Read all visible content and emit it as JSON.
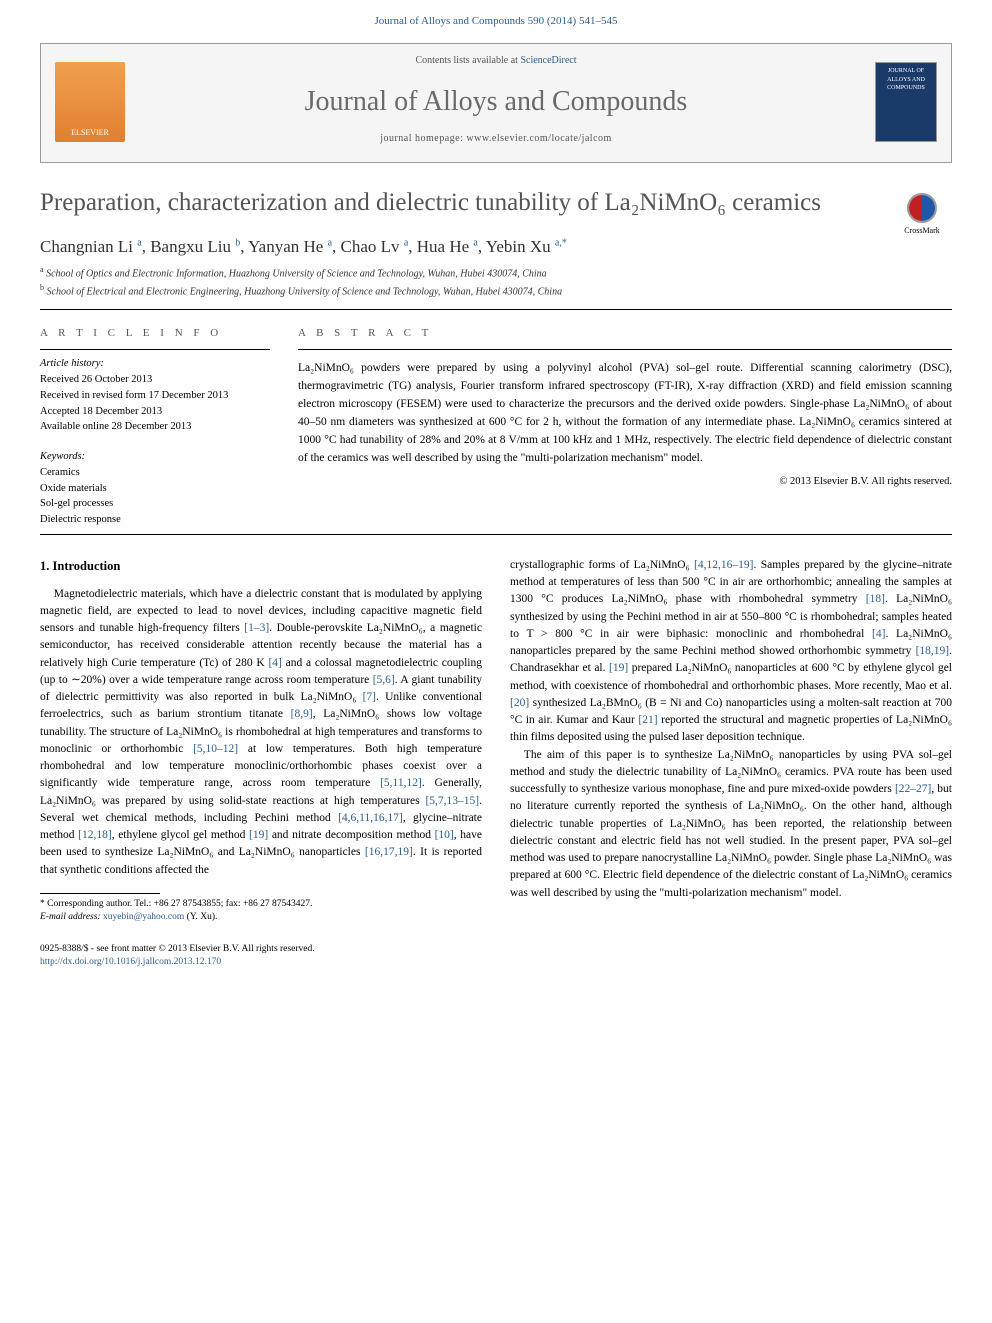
{
  "journalRef": "Journal of Alloys and Compounds 590 (2014) 541–545",
  "headerBox": {
    "contentsPrefix": "Contents lists available at ",
    "contentsLink": "ScienceDirect",
    "journalTitle": "Journal of Alloys and Compounds",
    "homepagePrefix": "journal homepage: ",
    "homepage": "www.elsevier.com/locate/jalcom",
    "elsevierLabel": "ELSEVIER",
    "coverText": "JOURNAL OF ALLOYS AND COMPOUNDS"
  },
  "crossmarkLabel": "CrossMark",
  "title": "Preparation, characterization and dielectric tunability of La₂NiMnO₆ ceramics",
  "authorsHtml": "Changnian Li <sup>a</sup>, Bangxu Liu <sup>b</sup>, Yanyan He <sup>a</sup>, Chao Lv <sup>a</sup>, Hua He <sup>a</sup>, Yebin Xu <sup>a,*</sup>",
  "affiliations": [
    {
      "sup": "a",
      "text": "School of Optics and Electronic Information, Huazhong University of Science and Technology, Wuhan, Hubei 430074, China"
    },
    {
      "sup": "b",
      "text": "School of Electrical and Electronic Engineering, Huazhong University of Science and Technology, Wuhan, Hubei 430074, China"
    }
  ],
  "infoLabel": "A R T I C L E   I N F O",
  "abstractLabel": "A B S T R A C T",
  "history": {
    "hdr": "Article history:",
    "lines": [
      "Received 26 October 2013",
      "Received in revised form 17 December 2013",
      "Accepted 18 December 2013",
      "Available online 28 December 2013"
    ]
  },
  "keywords": {
    "hdr": "Keywords:",
    "lines": [
      "Ceramics",
      "Oxide materials",
      "Sol-gel processes",
      "Dielectric response"
    ]
  },
  "abstract": "La₂NiMnO₆ powders were prepared by using a polyvinyl alcohol (PVA) sol–gel route. Differential scanning calorimetry (DSC), thermogravimetric (TG) analysis, Fourier transform infrared spectroscopy (FT-IR), X-ray diffraction (XRD) and field emission scanning electron microscopy (FESEM) were used to characterize the precursors and the derived oxide powders. Single-phase La₂NiMnO₆ of about 40–50 nm diameters was synthesized at 600 °C for 2 h, without the formation of any intermediate phase. La₂NiMnO₆ ceramics sintered at 1000 °C had tunability of 28% and 20% at 8 V/mm at 100 kHz and 1 MHz, respectively. The electric field dependence of dielectric constant of the ceramics was well described by using the \"multi-polarization mechanism\" model.",
  "copyright": "© 2013 Elsevier B.V. All rights reserved.",
  "sectionHeading": "1. Introduction",
  "bodyPara1": "Magnetodielectric materials, which have a dielectric constant that is modulated by applying magnetic field, are expected to lead to novel devices, including capacitive magnetic field sensors and tunable high-frequency filters [1–3]. Double-perovskite La₂NiMnO₆, a magnetic semiconductor, has received considerable attention recently because the material has a relatively high Curie temperature (Tc) of 280 K [4] and a colossal magnetodielectric coupling (up to ∼20%) over a wide temperature range across room temperature [5,6]. A giant tunability of dielectric permittivity was also reported in bulk La₂NiMnO₆ [7]. Unlike conventional ferroelectrics, such as barium strontium titanate [8,9], La₂NiMnO₆ shows low voltage tunability. The structure of La₂NiMnO₆ is rhombohedral at high temperatures and transforms to monoclinic or orthorhombic [5,10–12] at low temperatures. Both high temperature rhombohedral and low temperature monoclinic/orthorhombic phases coexist over a significantly wide temperature range, across room temperature [5,11,12]. Generally, La₂NiMnO₆ was prepared by using solid-state reactions at high temperatures [5,7,13–15]. Several wet chemical methods, including Pechini method [4,6,11,16,17], glycine–nitrate method [12,18], ethylene glycol gel method [19] and nitrate decomposition method [10], have been used to synthesize La₂NiMnO₆ and La₂NiMnO₆ nanoparticles [16,17,19]. It is reported that synthetic conditions affected the",
  "bodyPara2": "crystallographic forms of La₂NiMnO₆ [4,12,16–19]. Samples prepared by the glycine–nitrate method at temperatures of less than 500 °C in air are orthorhombic; annealing the samples at 1300 °C produces La₂NiMnO₆ phase with rhombohedral symmetry [18]. La₂NiMnO₆ synthesized by using the Pechini method in air at 550–800 °C is rhombohedral; samples heated to T > 800 °C in air were biphasic: monoclinic and rhombohedral [4]. La₂NiMnO₆ nanoparticles prepared by the same Pechini method showed orthorhombic symmetry [18,19]. Chandrasekhar et al. [19] prepared La₂NiMnO₆ nanoparticles at 600 °C by ethylene glycol gel method, with coexistence of rhombohedral and orthorhombic phases. More recently, Mao et al. [20] synthesized La₂BMnO₆ (B = Ni and Co) nanoparticles using a molten-salt reaction at 700 °C in air. Kumar and Kaur [21] reported the structural and magnetic properties of La₂NiMnO₆ thin films deposited using the pulsed laser deposition technique.",
  "bodyPara3": "The aim of this paper is to synthesize La₂NiMnO₆ nanoparticles by using PVA sol–gel method and study the dielectric tunability of La₂NiMnO₆ ceramics. PVA route has been used successfully to synthesize various monophase, fine and pure mixed-oxide powders [22–27], but no literature currently reported the synthesis of La₂NiMnO₆. On the other hand, although dielectric tunable properties of La₂NiMnO₆ has been reported, the relationship between dielectric constant and electric field has not well studied. In the present paper, PVA sol–gel method was used to prepare nanocrystalline La₂NiMnO₆ powder. Single phase La₂NiMnO₆ was prepared at 600 °C. Electric field dependence of the dielectric constant of La₂NiMnO₆ ceramics was well described by using the \"multi-polarization mechanism\" model.",
  "footnote": {
    "corr": "* Corresponding author. Tel.: +86 27 87543855; fax: +86 27 87543427.",
    "emailLabel": "E-mail address: ",
    "email": "xuyebin@yahoo.com",
    "emailSuffix": " (Y. Xu)."
  },
  "footer": {
    "line1": "0925-8388/$ - see front matter © 2013 Elsevier B.V. All rights reserved.",
    "doi": "http://dx.doi.org/10.1016/j.jallcom.2013.12.170"
  },
  "colors": {
    "linkBlue": "#2e5c8a",
    "titleGray": "#545454",
    "headerBg": "#f5f5f5"
  }
}
